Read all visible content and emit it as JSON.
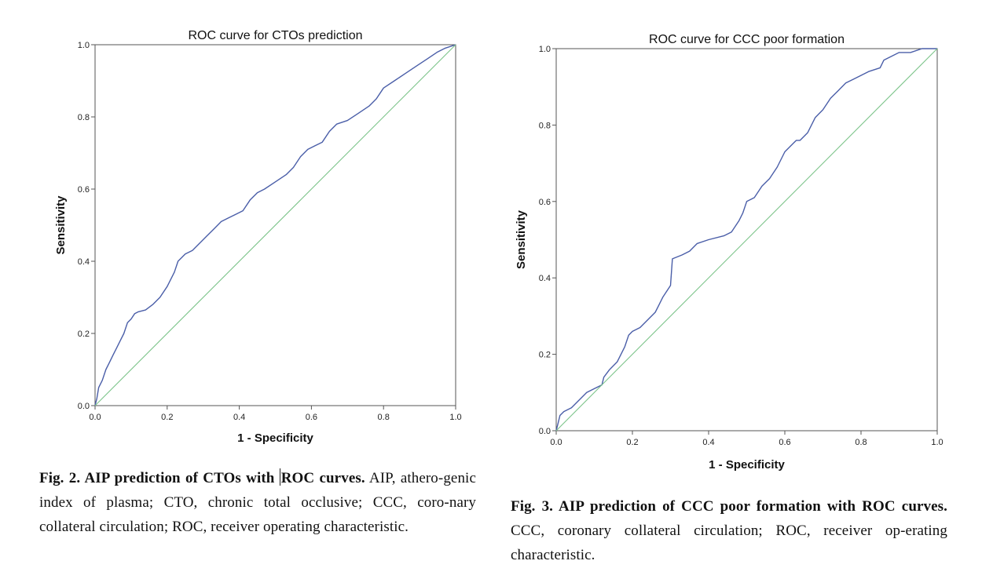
{
  "chart_data": [
    {
      "type": "line",
      "title": "ROC curve for CTOs prediction",
      "xlabel": "1 - Specificity",
      "ylabel": "Sensitivity",
      "xlim": [
        0,
        1
      ],
      "ylim": [
        0,
        1
      ],
      "x_ticks": [
        "0.0",
        "0.2",
        "0.4",
        "0.6",
        "0.8",
        "1.0"
      ],
      "y_ticks": [
        "0.0",
        "0.2",
        "0.4",
        "0.6",
        "0.8",
        "1.0"
      ],
      "grid": false,
      "colors": {
        "curve": "#4a5ea8",
        "reference": "#7cc48a"
      },
      "series": [
        {
          "x": [
            0.0,
            0.005,
            0.01,
            0.02,
            0.03,
            0.04,
            0.05,
            0.06,
            0.07,
            0.08,
            0.09,
            0.1,
            0.11,
            0.12,
            0.14,
            0.16,
            0.18,
            0.2,
            0.22,
            0.23,
            0.25,
            0.27,
            0.29,
            0.31,
            0.33,
            0.35,
            0.37,
            0.39,
            0.41,
            0.43,
            0.45,
            0.47,
            0.5,
            0.53,
            0.55,
            0.57,
            0.59,
            0.61,
            0.63,
            0.65,
            0.67,
            0.7,
            0.73,
            0.76,
            0.78,
            0.8,
            0.83,
            0.86,
            0.89,
            0.92,
            0.95,
            0.97,
            1.0
          ],
          "y": [
            0.0,
            0.02,
            0.05,
            0.07,
            0.1,
            0.12,
            0.14,
            0.16,
            0.18,
            0.2,
            0.23,
            0.24,
            0.255,
            0.26,
            0.265,
            0.28,
            0.3,
            0.33,
            0.37,
            0.4,
            0.42,
            0.43,
            0.45,
            0.47,
            0.49,
            0.51,
            0.52,
            0.53,
            0.54,
            0.57,
            0.59,
            0.6,
            0.62,
            0.64,
            0.66,
            0.69,
            0.71,
            0.72,
            0.73,
            0.76,
            0.78,
            0.79,
            0.81,
            0.83,
            0.85,
            0.88,
            0.9,
            0.92,
            0.94,
            0.96,
            0.98,
            0.99,
            1.0
          ]
        },
        {
          "x": [
            0,
            1
          ],
          "y": [
            0,
            1
          ]
        }
      ]
    },
    {
      "type": "line",
      "title": "ROC curve for CCC poor formation",
      "xlabel": "1 - Specificity",
      "ylabel": "Sensitivity",
      "xlim": [
        0,
        1
      ],
      "ylim": [
        0,
        1
      ],
      "x_ticks": [
        "0.0",
        "0.2",
        "0.4",
        "0.6",
        "0.8",
        "1.0"
      ],
      "y_ticks": [
        "0.0",
        "0.2",
        "0.4",
        "0.6",
        "0.8",
        "1.0"
      ],
      "grid": false,
      "colors": {
        "curve": "#4a5ea8",
        "reference": "#7cc48a"
      },
      "series": [
        {
          "x": [
            0.0,
            0.005,
            0.01,
            0.02,
            0.04,
            0.06,
            0.08,
            0.1,
            0.12,
            0.125,
            0.14,
            0.16,
            0.18,
            0.19,
            0.2,
            0.22,
            0.24,
            0.26,
            0.27,
            0.28,
            0.3,
            0.305,
            0.33,
            0.35,
            0.37,
            0.4,
            0.44,
            0.46,
            0.48,
            0.49,
            0.5,
            0.52,
            0.54,
            0.56,
            0.58,
            0.6,
            0.62,
            0.63,
            0.64,
            0.66,
            0.68,
            0.7,
            0.72,
            0.74,
            0.76,
            0.78,
            0.82,
            0.85,
            0.86,
            0.88,
            0.9,
            0.93,
            0.96,
            1.0
          ],
          "y": [
            0.0,
            0.02,
            0.04,
            0.05,
            0.06,
            0.08,
            0.1,
            0.11,
            0.12,
            0.14,
            0.16,
            0.18,
            0.22,
            0.25,
            0.26,
            0.27,
            0.29,
            0.31,
            0.33,
            0.35,
            0.38,
            0.45,
            0.46,
            0.47,
            0.49,
            0.5,
            0.51,
            0.52,
            0.55,
            0.57,
            0.6,
            0.61,
            0.64,
            0.66,
            0.69,
            0.73,
            0.75,
            0.76,
            0.76,
            0.78,
            0.82,
            0.84,
            0.87,
            0.89,
            0.91,
            0.92,
            0.94,
            0.95,
            0.97,
            0.98,
            0.99,
            0.99,
            1.0,
            1.0
          ]
        },
        {
          "x": [
            0,
            1
          ],
          "y": [
            0,
            1
          ]
        }
      ]
    }
  ],
  "captions": {
    "fig2": {
      "label": "Fig. 2. AIP prediction of CTOs with ",
      "label_after_cursor": "ROC curves.",
      "text": " AIP, athero-genic index of plasma; CTO, chronic total occlusive; CCC, coro-nary collateral circulation; ROC, receiver operating characteristic."
    },
    "fig3": {
      "label": "Fig. 3.  AIP prediction of CCC poor formation with ROC curves.",
      "text": " CCC, coronary collateral circulation; ROC, receiver op-erating characteristic."
    }
  }
}
